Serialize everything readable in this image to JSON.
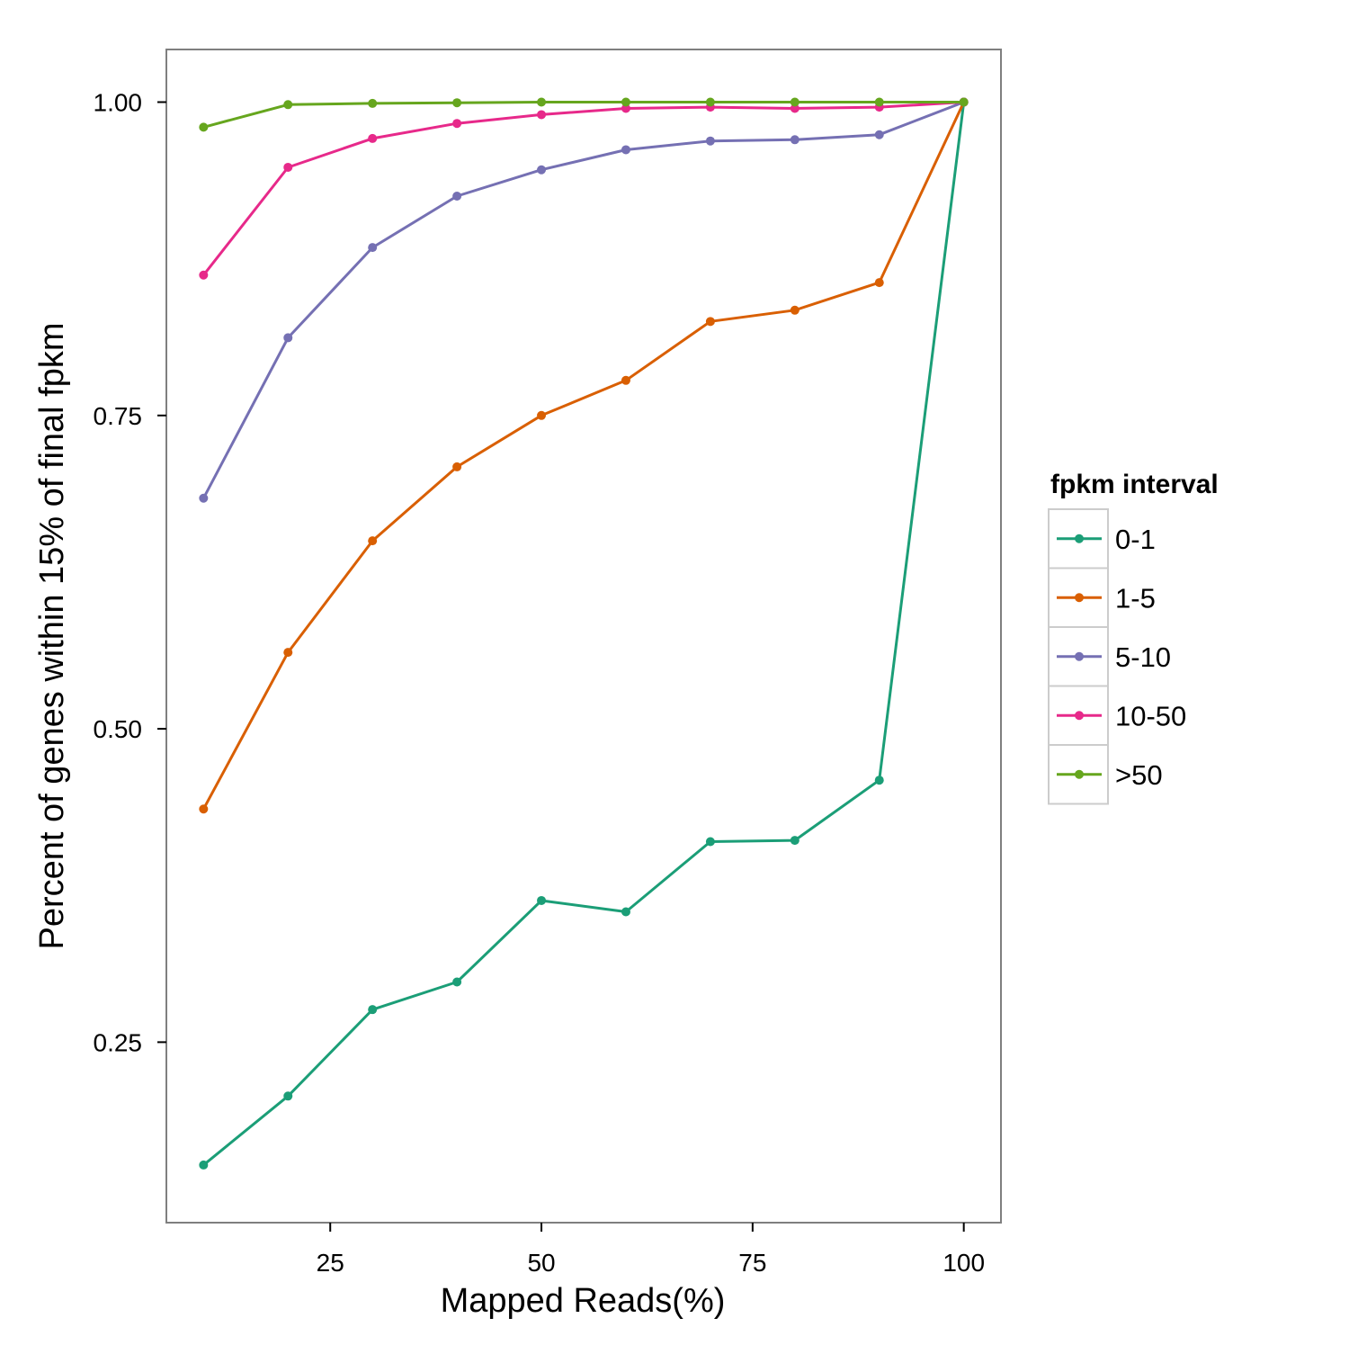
{
  "chart_data": {
    "type": "line",
    "title": "",
    "xlabel": "Mapped Reads(%)",
    "ylabel": "Percent of genes within 15% of final fpkm",
    "xlim": [
      5.6,
      104.4
    ],
    "ylim": [
      0.106,
      1.042
    ],
    "xticks": [
      25,
      50,
      75,
      100
    ],
    "xtick_labels": [
      "25",
      "50",
      "75",
      "100"
    ],
    "yticks": [
      0.25,
      0.5,
      0.75,
      1.0
    ],
    "ytick_labels": [
      "0.25",
      "0.50",
      "0.75",
      "1.00"
    ],
    "grid": false,
    "legend": {
      "title": "fpkm interval",
      "position": "right"
    },
    "x": [
      10,
      20,
      30,
      40,
      50,
      60,
      70,
      80,
      90,
      100
    ],
    "series": [
      {
        "name": "0-1",
        "color": "#1b9e77",
        "values": [
          0.152,
          0.207,
          0.276,
          0.298,
          0.363,
          0.354,
          0.41,
          0.411,
          0.459,
          1.0
        ]
      },
      {
        "name": "1-5",
        "color": "#d95f02",
        "values": [
          0.436,
          0.561,
          0.65,
          0.709,
          0.75,
          0.778,
          0.825,
          0.834,
          0.856,
          1.0
        ]
      },
      {
        "name": "5-10",
        "color": "#7570b3",
        "values": [
          0.684,
          0.812,
          0.884,
          0.925,
          0.946,
          0.962,
          0.969,
          0.97,
          0.974,
          1.0
        ]
      },
      {
        "name": "10-50",
        "color": "#e7298a",
        "values": [
          0.862,
          0.948,
          0.971,
          0.983,
          0.99,
          0.995,
          0.996,
          0.995,
          0.996,
          1.0
        ]
      },
      {
        "name": ">50",
        "color": "#66a61e",
        "values": [
          0.98,
          0.998,
          0.999,
          0.9995,
          1.0,
          1.0,
          1.0,
          1.0,
          1.0,
          1.0
        ]
      }
    ]
  }
}
